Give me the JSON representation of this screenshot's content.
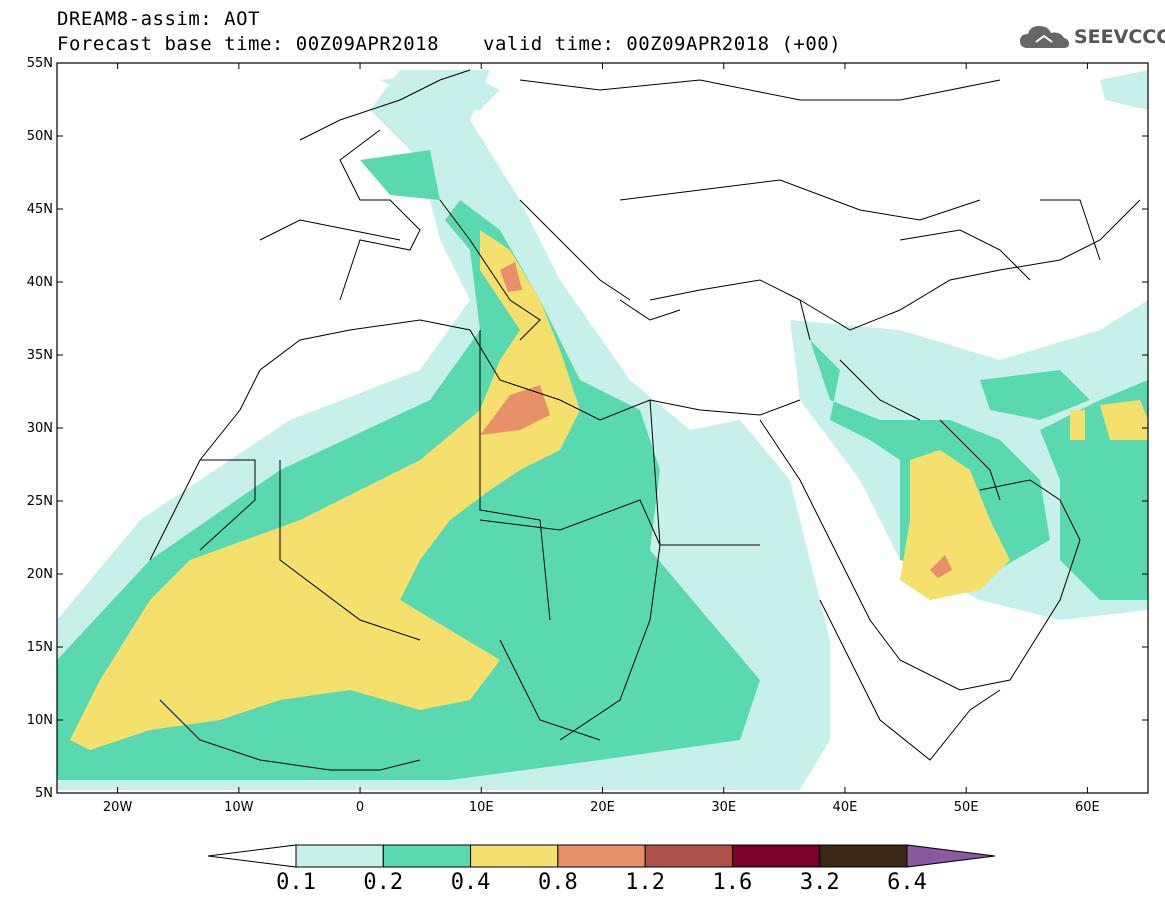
{
  "header": {
    "title_line1": "DREAM8-assim: AOT",
    "title_line2": "Forecast base time: 00Z09APR2018",
    "valid_time": "valid time: 00Z09APR2018 (+00)",
    "logo_text": "SEEVCCC"
  },
  "map": {
    "lat_labels": [
      "55N",
      "50N",
      "45N",
      "40N",
      "35N",
      "30N",
      "25N",
      "20N",
      "15N",
      "10N",
      "5N"
    ],
    "lon_labels": [
      "20W",
      "10W",
      "0",
      "10E",
      "20E",
      "30E",
      "40E",
      "50E",
      "60E"
    ],
    "lon_range": [
      -25,
      65
    ],
    "lat_range": [
      5,
      55
    ]
  },
  "colorbar": {
    "labels": [
      "0.1",
      "0.2",
      "0.4",
      "0.8",
      "1.2",
      "1.6",
      "3.2",
      "6.4"
    ],
    "colors": [
      "#ffffff",
      "#c8f0ea",
      "#5ad9b0",
      "#f5e06e",
      "#e8906a",
      "#b0504a",
      "#7a0028",
      "#3a2814",
      "#8a5aa0"
    ]
  }
}
